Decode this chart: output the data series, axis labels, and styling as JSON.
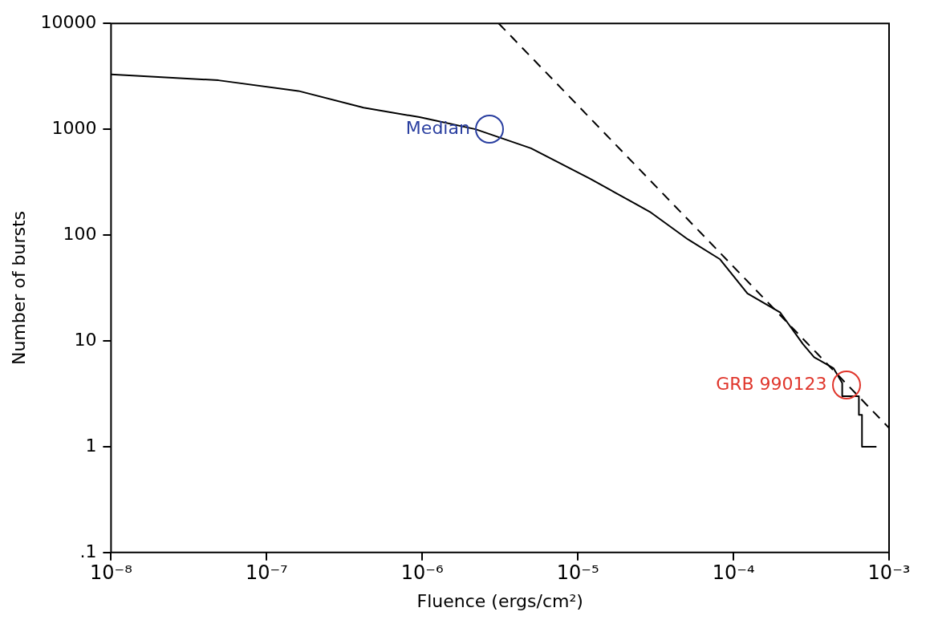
{
  "chart_data": {
    "type": "line",
    "xlabel": "Fluence (ergs/cm²)",
    "ylabel": "Number of bursts",
    "log": "xy",
    "grid": false,
    "legend": false,
    "marker": "none",
    "xlim": [
      1e-08,
      0.001
    ],
    "xticks": [
      {
        "value": 1e-08,
        "label": "10⁻⁸"
      },
      {
        "value": 1e-07,
        "label": "10⁻⁷"
      },
      {
        "value": 1e-06,
        "label": "10⁻⁶"
      },
      {
        "value": 1e-05,
        "label": "10⁻⁵"
      },
      {
        "value": 0.0001,
        "label": "10⁻⁴"
      },
      {
        "value": 0.001,
        "label": "10⁻³"
      }
    ],
    "ylim": [
      0.1,
      10000
    ],
    "yticks": [
      {
        "value": 0.1,
        "label": ".1"
      },
      1,
      10,
      100,
      1000,
      10000
    ],
    "series": [
      {
        "color": "#000000",
        "line_style": "solid",
        "x": [
          1e-08,
          4.9e-08,
          1.6e-07,
          4.2e-07,
          9.6e-07,
          2.2e-06,
          5e-06,
          1.2e-05,
          2.9e-05,
          5.1e-05,
          8.2e-05,
          0.000123,
          0.0002,
          0.00028,
          0.00033,
          0.00044,
          0.0005,
          0.0005,
          0.00064,
          0.00064,
          0.00067,
          0.00067,
          0.00083
        ],
        "values": [
          3300,
          2900,
          2300,
          1600,
          1300,
          1000,
          660,
          340,
          166,
          91,
          59,
          28,
          18.5,
          9.3,
          7,
          5.5,
          4,
          3,
          3,
          2,
          2,
          1,
          1
        ]
      },
      {
        "color": "#000000",
        "line_style": "dashed",
        "x": [
          3.1e-06,
          0.001
        ],
        "values": [
          10000,
          1.5
        ]
      }
    ],
    "annotations": [
      {
        "text": "Median",
        "x": 2.7e-06,
        "y": 1000
      },
      {
        "text": "GRB 990123",
        "x": 0.00053,
        "y": 3.8
      }
    ]
  }
}
